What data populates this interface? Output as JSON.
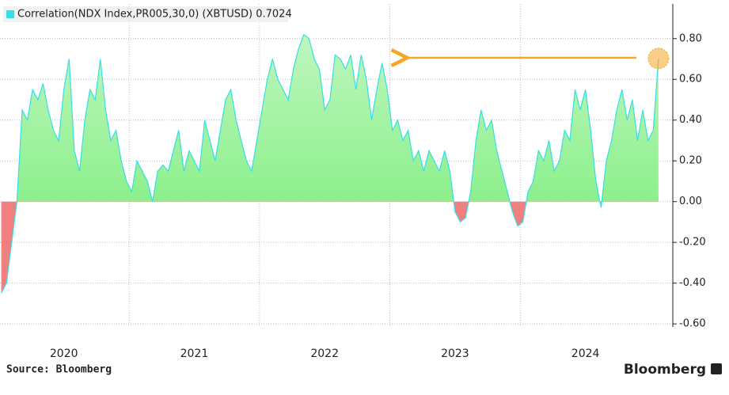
{
  "chart_data": {
    "type": "area",
    "legend": "Correlation(NDX Index,PR005,30,0) (XBTUSD) 0.7024",
    "source": "Source: Bloomberg",
    "watermark": "Bloomberg",
    "color": "#33e0e8",
    "positive_color": "#8cf08c",
    "negative_color": "#f08080",
    "highlight_color": "#f5a623",
    "grid": true,
    "xlim": [
      2020.01,
      2025.17
    ],
    "xticks": [
      2020,
      2021,
      2022,
      2023,
      2024
    ],
    "ylim": [
      -0.615,
      0.97
    ],
    "yticks": [
      {
        "value": 0.8,
        "label": "0.80"
      },
      {
        "value": 0.6,
        "label": "0.60"
      },
      {
        "value": 0.4,
        "label": "0.40"
      },
      {
        "value": 0.2,
        "label": "0.20"
      },
      {
        "value": 0,
        "label": "0.00"
      },
      {
        "value": -0.2,
        "label": "-0.20"
      },
      {
        "value": -0.4,
        "label": "-0.40"
      },
      {
        "value": -0.6,
        "label": "-0.60"
      }
    ],
    "x": [
      2020.02,
      2020.06,
      2020.1,
      2020.14,
      2020.18,
      2020.22,
      2020.26,
      2020.3,
      2020.34,
      2020.38,
      2020.42,
      2020.46,
      2020.5,
      2020.54,
      2020.58,
      2020.62,
      2020.66,
      2020.7,
      2020.74,
      2020.78,
      2020.82,
      2020.86,
      2020.9,
      2020.94,
      2020.98,
      2021.02,
      2021.06,
      2021.1,
      2021.14,
      2021.18,
      2021.22,
      2021.26,
      2021.3,
      2021.34,
      2021.38,
      2021.42,
      2021.46,
      2021.5,
      2021.54,
      2021.58,
      2021.62,
      2021.66,
      2021.7,
      2021.74,
      2021.78,
      2021.82,
      2021.86,
      2021.9,
      2021.94,
      2021.98,
      2022.02,
      2022.06,
      2022.1,
      2022.14,
      2022.18,
      2022.22,
      2022.26,
      2022.3,
      2022.34,
      2022.38,
      2022.42,
      2022.46,
      2022.5,
      2022.54,
      2022.58,
      2022.62,
      2022.66,
      2022.7,
      2022.74,
      2022.78,
      2022.82,
      2022.86,
      2022.9,
      2022.94,
      2022.98,
      2023.02,
      2023.06,
      2023.1,
      2023.14,
      2023.18,
      2023.22,
      2023.26,
      2023.3,
      2023.34,
      2023.38,
      2023.42,
      2023.46,
      2023.5,
      2023.54,
      2023.58,
      2023.62,
      2023.66,
      2023.7,
      2023.74,
      2023.78,
      2023.82,
      2023.86,
      2023.9,
      2023.94,
      2023.98,
      2024.02,
      2024.06,
      2024.1,
      2024.14,
      2024.18,
      2024.22,
      2024.26,
      2024.3,
      2024.34,
      2024.38,
      2024.42,
      2024.46,
      2024.5,
      2024.54,
      2024.58,
      2024.62,
      2024.66,
      2024.7,
      2024.74,
      2024.78,
      2024.82,
      2024.86,
      2024.9,
      2024.94,
      2024.98,
      2025.02,
      2025.06
    ],
    "values": [
      -0.45,
      -0.4,
      -0.2,
      0.0,
      0.45,
      0.4,
      0.55,
      0.5,
      0.58,
      0.45,
      0.35,
      0.3,
      0.55,
      0.7,
      0.25,
      0.15,
      0.4,
      0.55,
      0.5,
      0.7,
      0.45,
      0.3,
      0.35,
      0.2,
      0.1,
      0.05,
      0.2,
      0.15,
      0.1,
      0.0,
      0.15,
      0.18,
      0.15,
      0.25,
      0.35,
      0.15,
      0.25,
      0.2,
      0.15,
      0.4,
      0.3,
      0.2,
      0.35,
      0.5,
      0.55,
      0.4,
      0.3,
      0.2,
      0.15,
      0.3,
      0.45,
      0.6,
      0.7,
      0.6,
      0.55,
      0.5,
      0.65,
      0.75,
      0.82,
      0.8,
      0.7,
      0.65,
      0.45,
      0.5,
      0.72,
      0.7,
      0.65,
      0.72,
      0.55,
      0.72,
      0.6,
      0.4,
      0.55,
      0.68,
      0.55,
      0.35,
      0.4,
      0.3,
      0.35,
      0.2,
      0.25,
      0.15,
      0.25,
      0.2,
      0.15,
      0.25,
      0.15,
      -0.05,
      -0.1,
      -0.08,
      0.05,
      0.3,
      0.45,
      0.35,
      0.4,
      0.25,
      0.15,
      0.05,
      -0.05,
      -0.12,
      -0.1,
      0.05,
      0.1,
      0.25,
      0.2,
      0.3,
      0.15,
      0.2,
      0.35,
      0.3,
      0.55,
      0.45,
      0.55,
      0.35,
      0.1,
      -0.03,
      0.2,
      0.3,
      0.45,
      0.55,
      0.4,
      0.5,
      0.3,
      0.45,
      0.3,
      0.35,
      0.7024
    ]
  }
}
